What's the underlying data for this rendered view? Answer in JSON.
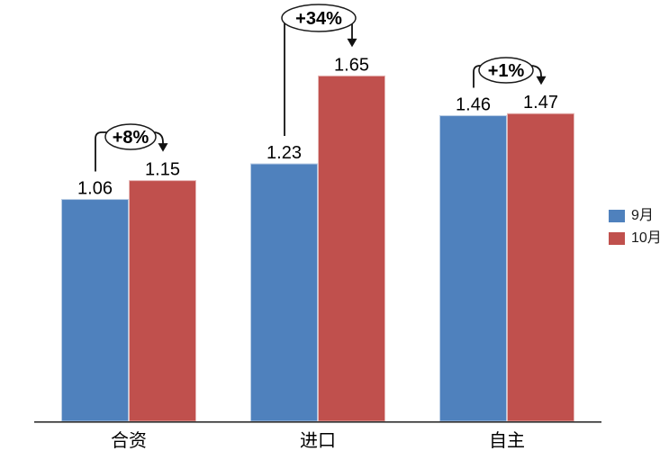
{
  "chart_data": {
    "type": "bar",
    "title": "",
    "xlabel": "",
    "ylabel": "",
    "categories": [
      "合资",
      "进口",
      "自主"
    ],
    "series": [
      {
        "name": "9月",
        "color": "#4F81BD",
        "border_color": "#B8CCE4",
        "values": [
          1.06,
          1.23,
          1.46
        ]
      },
      {
        "name": "10月",
        "color": "#C0504D",
        "border_color": "#E6B8B7",
        "values": [
          1.15,
          1.65,
          1.47
        ]
      }
    ],
    "value_label_decimals": 2,
    "value_labels": [
      [
        "1.06",
        "1.23",
        "1.46"
      ],
      [
        "1.15",
        "1.65",
        "1.47"
      ]
    ],
    "annotations": [
      {
        "category": "合资",
        "label": "+8%"
      },
      {
        "category": "进口",
        "label": "+34%"
      },
      {
        "category": "自主",
        "label": "+1%"
      }
    ],
    "ylim": [
      0,
      2
    ],
    "grid": false,
    "axis_ticks_visible": false,
    "legend_position": "right",
    "annotation_color": "#111111",
    "axis_color": "#303030",
    "background_color": "#ffffff"
  }
}
